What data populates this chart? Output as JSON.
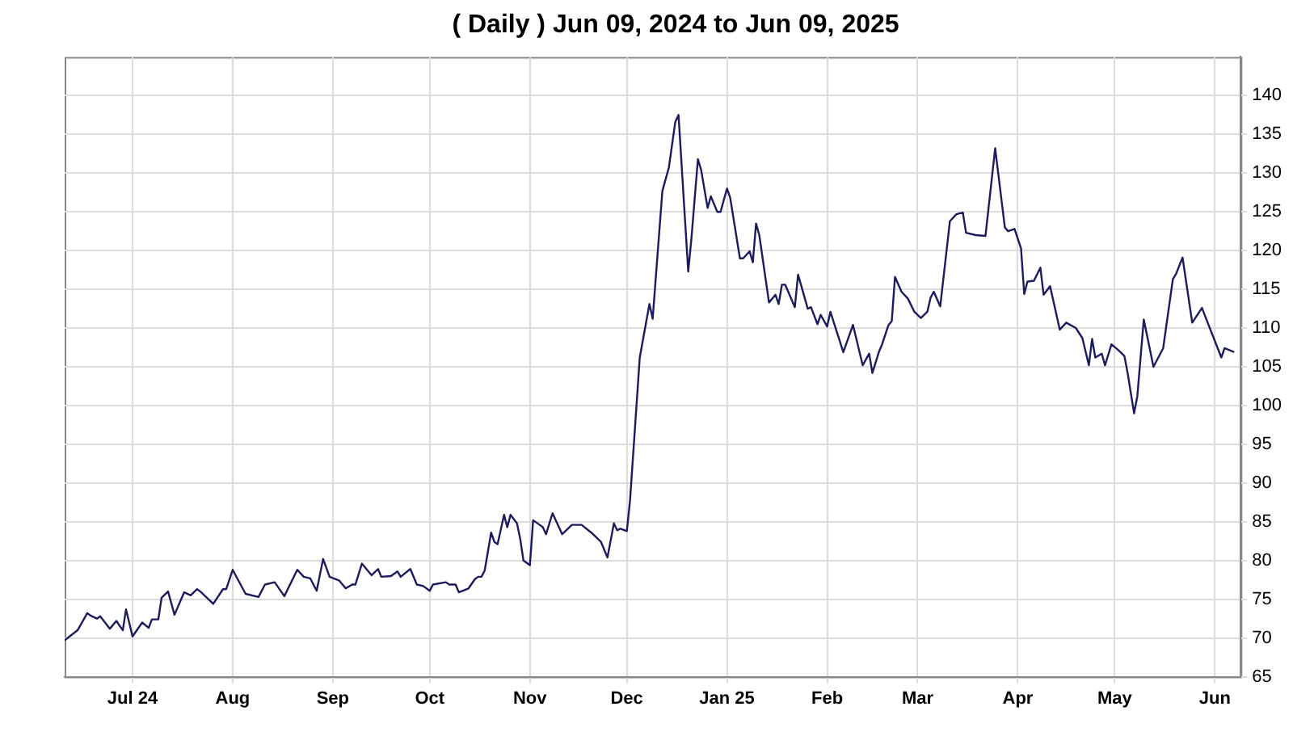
{
  "chart_data": {
    "type": "line",
    "title": "( Daily ) Jun 09, 2024 to Jun 09, 2025",
    "x": [
      "2024-06-10",
      "2024-06-14",
      "2024-06-17",
      "2024-06-18",
      "2024-06-20",
      "2024-06-21",
      "2024-06-24",
      "2024-06-26",
      "2024-06-28",
      "2024-06-29",
      "2024-07-01",
      "2024-07-04",
      "2024-07-06",
      "2024-07-07",
      "2024-07-09",
      "2024-07-10",
      "2024-07-12",
      "2024-07-14",
      "2024-07-17",
      "2024-07-19",
      "2024-07-21",
      "2024-07-22",
      "2024-07-26",
      "2024-07-29",
      "2024-07-30",
      "2024-08-01",
      "2024-08-05",
      "2024-08-09",
      "2024-08-11",
      "2024-08-14",
      "2024-08-17",
      "2024-08-21",
      "2024-08-23",
      "2024-08-25",
      "2024-08-27",
      "2024-08-29",
      "2024-08-31",
      "2024-09-03",
      "2024-09-05",
      "2024-09-07",
      "2024-09-08",
      "2024-09-10",
      "2024-09-13",
      "2024-09-15",
      "2024-09-16",
      "2024-09-19",
      "2024-09-21",
      "2024-09-22",
      "2024-09-25",
      "2024-09-27",
      "2024-09-29",
      "2024-10-01",
      "2024-10-02",
      "2024-10-06",
      "2024-10-07",
      "2024-10-09",
      "2024-10-10",
      "2024-10-13",
      "2024-10-15",
      "2024-10-16",
      "2024-10-17",
      "2024-10-18",
      "2024-10-20",
      "2024-10-21",
      "2024-10-22",
      "2024-10-24",
      "2024-10-25",
      "2024-10-26",
      "2024-10-28",
      "2024-10-29",
      "2024-10-30",
      "2024-11-01",
      "2024-11-02",
      "2024-11-04",
      "2024-11-05",
      "2024-11-06",
      "2024-11-08",
      "2024-11-11",
      "2024-11-14",
      "2024-11-17",
      "2024-11-20",
      "2024-11-23",
      "2024-11-25",
      "2024-11-27",
      "2024-11-28",
      "2024-11-29",
      "2024-12-01",
      "2024-12-02",
      "2024-12-05",
      "2024-12-08",
      "2024-12-09",
      "2024-12-12",
      "2024-12-14",
      "2024-12-16",
      "2024-12-17",
      "2024-12-20",
      "2024-12-21",
      "2024-12-23",
      "2024-12-24",
      "2024-12-26",
      "2024-12-27",
      "2024-12-29",
      "2024-12-30",
      "2025-01-01",
      "2025-01-02",
      "2025-01-05",
      "2025-01-06",
      "2025-01-08",
      "2025-01-09",
      "2025-01-10",
      "2025-01-11",
      "2025-01-14",
      "2025-01-16",
      "2025-01-17",
      "2025-01-18",
      "2025-01-19",
      "2025-01-22",
      "2025-01-23",
      "2025-01-26",
      "2025-01-27",
      "2025-01-29",
      "2025-01-30",
      "2025-02-01",
      "2025-02-02",
      "2025-02-06",
      "2025-02-09",
      "2025-02-12",
      "2025-02-14",
      "2025-02-15",
      "2025-02-17",
      "2025-02-18",
      "2025-02-20",
      "2025-02-21",
      "2025-02-22",
      "2025-02-24",
      "2025-02-26",
      "2025-02-28",
      "2025-03-02",
      "2025-03-04",
      "2025-03-05",
      "2025-03-06",
      "2025-03-08",
      "2025-03-11",
      "2025-03-13",
      "2025-03-15",
      "2025-03-16",
      "2025-03-19",
      "2025-03-22",
      "2025-03-25",
      "2025-03-28",
      "2025-03-29",
      "2025-03-31",
      "2025-04-02",
      "2025-04-03",
      "2025-04-04",
      "2025-04-06",
      "2025-04-08",
      "2025-04-09",
      "2025-04-11",
      "2025-04-14",
      "2025-04-16",
      "2025-04-19",
      "2025-04-21",
      "2025-04-23",
      "2025-04-24",
      "2025-04-25",
      "2025-04-27",
      "2025-04-28",
      "2025-04-30",
      "2025-05-02",
      "2025-05-04",
      "2025-05-05",
      "2025-05-07",
      "2025-05-08",
      "2025-05-10",
      "2025-05-13",
      "2025-05-16",
      "2025-05-19",
      "2025-05-20",
      "2025-05-22",
      "2025-05-25",
      "2025-05-28",
      "2025-06-03",
      "2025-06-04",
      "2025-06-07"
    ],
    "series": [
      {
        "color": "#1c1c5c",
        "values": [
          69.7,
          71.0,
          73.2,
          72.9,
          72.5,
          72.8,
          71.2,
          72.2,
          71.0,
          73.7,
          70.2,
          72.0,
          71.3,
          72.4,
          72.4,
          75.2,
          76.0,
          73.0,
          75.9,
          75.5,
          76.3,
          76.0,
          74.4,
          76.3,
          76.3,
          78.8,
          75.7,
          75.3,
          76.9,
          77.2,
          75.4,
          78.8,
          77.9,
          77.7,
          76.1,
          80.2,
          77.9,
          77.4,
          76.4,
          76.9,
          76.9,
          79.6,
          78.1,
          78.9,
          77.9,
          78.0,
          78.6,
          77.9,
          78.9,
          76.9,
          76.7,
          76.1,
          76.9,
          77.2,
          76.9,
          76.9,
          75.9,
          76.4,
          77.6,
          77.9,
          77.9,
          78.7,
          83.6,
          82.4,
          82.1,
          85.9,
          84.3,
          85.9,
          84.8,
          82.8,
          80.0,
          79.4,
          85.2,
          84.6,
          84.3,
          83.4,
          86.1,
          83.4,
          84.6,
          84.6,
          83.6,
          82.4,
          80.4,
          84.8,
          83.9,
          84.1,
          83.8,
          87.8,
          106.2,
          113.1,
          111.2,
          127.7,
          130.7,
          136.6,
          137.5,
          117.3,
          121.6,
          131.8,
          130.4,
          125.5,
          127.0,
          125.0,
          125.0,
          128.0,
          126.8,
          119.0,
          119.0,
          119.9,
          118.5,
          123.5,
          122.0,
          113.3,
          114.3,
          113.1,
          115.6,
          115.6,
          112.7,
          116.9,
          112.5,
          112.7,
          110.5,
          111.7,
          110.2,
          112.1,
          106.9,
          110.4,
          105.2,
          106.7,
          104.2,
          106.9,
          107.9,
          110.4,
          110.9,
          116.6,
          114.7,
          113.8,
          112.1,
          111.3,
          112.1,
          113.9,
          114.7,
          112.8,
          123.8,
          124.7,
          124.9,
          122.3,
          122.0,
          121.9,
          133.2,
          123.0,
          122.5,
          122.8,
          120.3,
          114.4,
          116.0,
          116.1,
          117.8,
          114.3,
          115.4,
          109.8,
          110.7,
          110.0,
          108.7,
          105.2,
          108.6,
          106.2,
          106.7,
          105.2,
          107.9,
          107.2,
          106.4,
          104.2,
          99.0,
          101.2,
          111.1,
          105.0,
          107.4,
          116.3,
          117.0,
          119.1,
          110.7,
          112.6,
          106.2,
          107.4,
          106.9
        ]
      }
    ],
    "xlim": [
      "2024-06-10",
      "2025-06-09"
    ],
    "xticks": [
      {
        "value": "2024-07-01",
        "label": "Jul 24"
      },
      {
        "value": "2024-08-01",
        "label": "Aug"
      },
      {
        "value": "2024-09-01",
        "label": "Sep"
      },
      {
        "value": "2024-10-01",
        "label": "Oct"
      },
      {
        "value": "2024-11-01",
        "label": "Nov"
      },
      {
        "value": "2024-12-01",
        "label": "Dec"
      },
      {
        "value": "2025-01-01",
        "label": "Jan 25"
      },
      {
        "value": "2025-02-01",
        "label": "Feb"
      },
      {
        "value": "2025-03-01",
        "label": "Mar"
      },
      {
        "value": "2025-04-01",
        "label": "Apr"
      },
      {
        "value": "2025-05-01",
        "label": "May"
      },
      {
        "value": "2025-06-01",
        "label": "Jun"
      }
    ],
    "ylim": [
      65,
      145
    ],
    "yticks": [
      65,
      70,
      75,
      80,
      85,
      90,
      95,
      100,
      105,
      110,
      115,
      120,
      125,
      130,
      135,
      140
    ],
    "grid": true,
    "legend": false,
    "marker": "none",
    "line_style": "solid"
  }
}
